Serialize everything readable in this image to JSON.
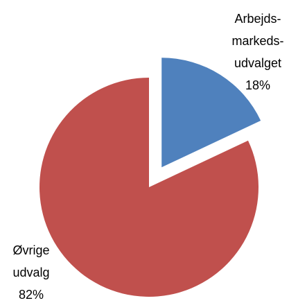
{
  "chart_data": {
    "type": "pie",
    "categories": [
      [
        "Arbejds-",
        "markeds-",
        "udvalget"
      ],
      [
        "Øvrige",
        "udvalg"
      ]
    ],
    "values": [
      18,
      82
    ],
    "value_labels": [
      "18%",
      "82%"
    ],
    "colors": [
      "#4f81bd",
      "#c0504d"
    ]
  }
}
